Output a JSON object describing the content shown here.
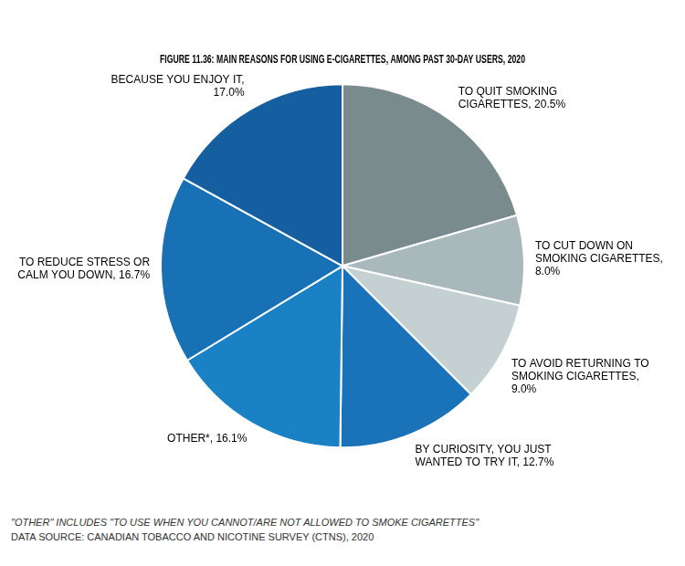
{
  "chart_data": {
    "type": "pie",
    "title": "FIGURE 11.36: MAIN REASONS FOR USING E-CIGARETTES, AMONG PAST 30-DAY USERS, 2020",
    "annotations": [
      "\"OTHER\" INCLUDES \"TO USE WHEN YOU CANNOT/ARE NOT ALLOWED TO SMOKE CIGARETTES\"",
      "DATA SOURCE: CANADIAN TOBACCO AND NICOTINE SURVEY (CTNS), 2020"
    ],
    "categories": [
      "TO QUIT SMOKING\nCIGARETTES, 20.5%",
      "TO CUT DOWN ON\nSMOKING CIGARETTES,\n8.0%",
      "TO AVOID RETURNING TO\nSMOKING CIGARETTES,\n9.0%",
      "BY CURIOSITY, YOU JUST\nWANTED TO TRY IT, 12.7%",
      "OTHER*, 16.1%",
      "TO REDUCE STRESS OR\nCALM YOU DOWN, 16.7%",
      "BECAUSE YOU ENJOY IT,\n17.0%"
    ],
    "values": [
      20.5,
      8.0,
      9.0,
      12.7,
      16.1,
      16.7,
      17.0
    ],
    "colors": [
      "#7a8b8e",
      "#a8b8bb",
      "#c5d0d2",
      "#1a72b8",
      "#1a82c4",
      "#1870b5",
      "#155fa0"
    ]
  }
}
